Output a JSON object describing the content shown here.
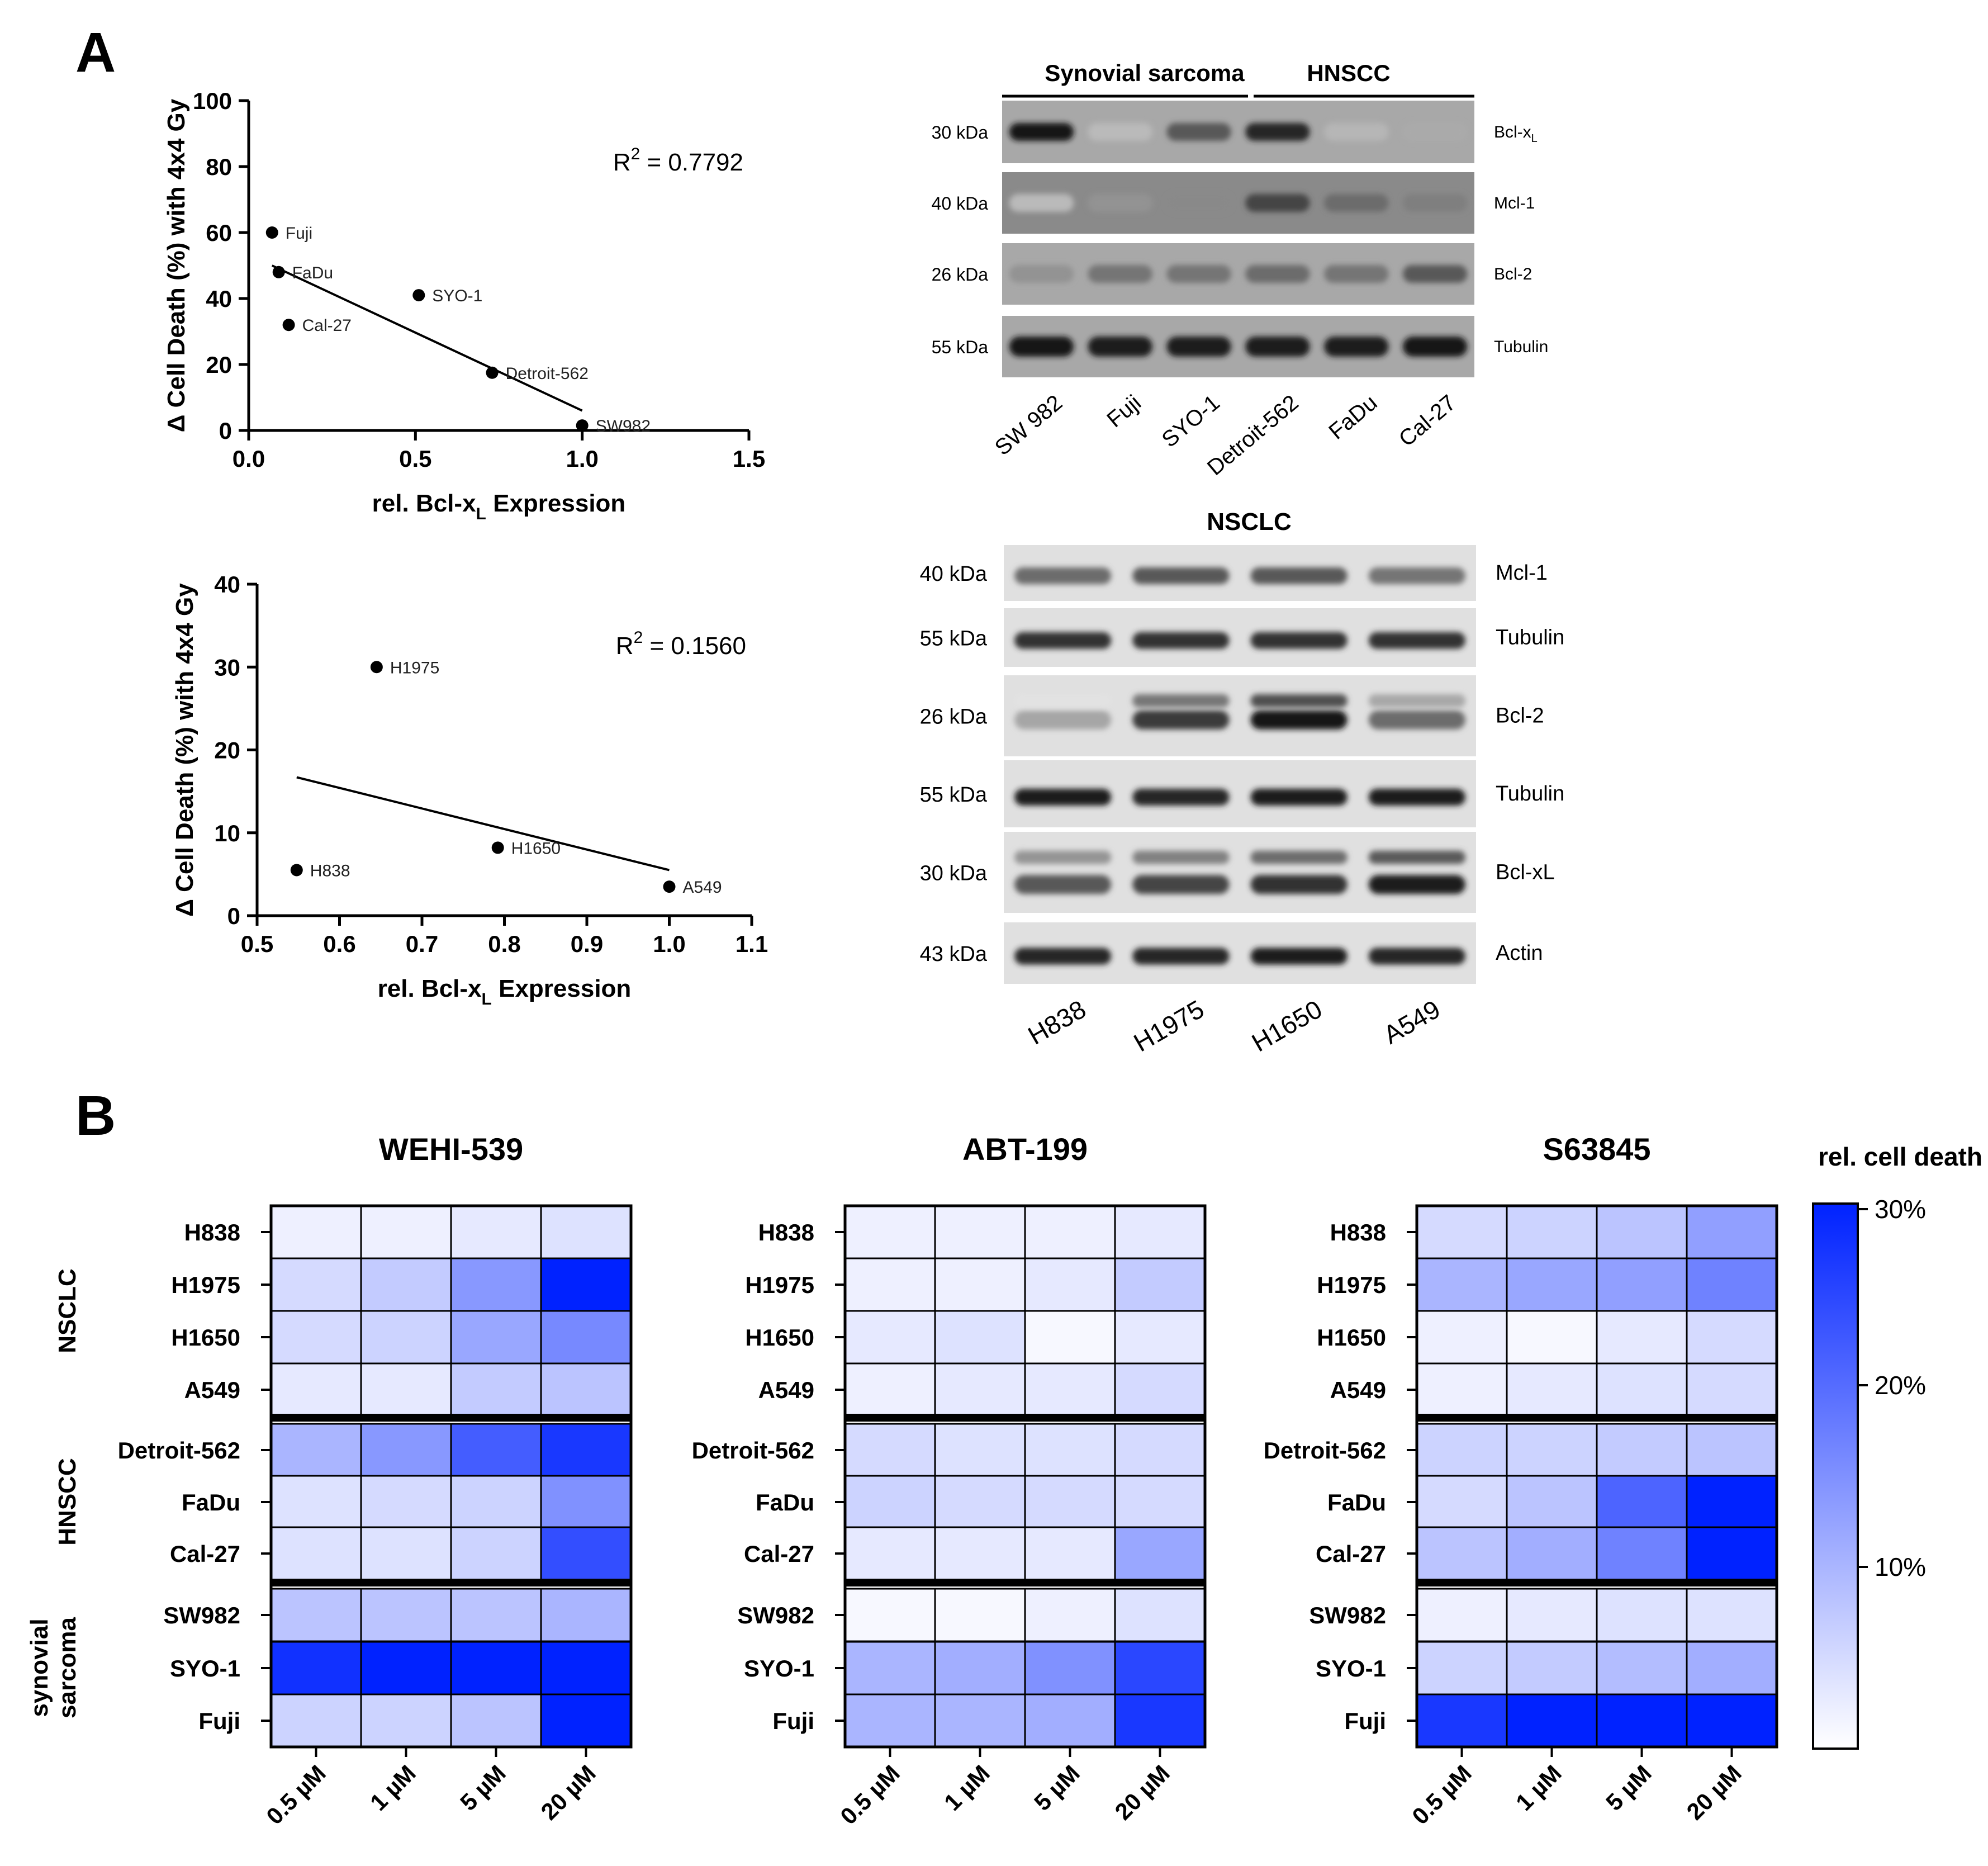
{
  "panel_a_label": "A",
  "panel_b_label": "B",
  "scatter_charts": [
    {
      "type": "scatter",
      "ylabel": "Δ Cell Death (%) with 4x4 Gy",
      "xlabel_main": "rel. Bcl-x",
      "xlabel_sub": "L",
      "xlabel_tail": " Expression",
      "r2_prefix": "R",
      "r2_sup": "2",
      "r2_value": " = 0.7792",
      "xlim": [
        0,
        1.5
      ],
      "ylim": [
        0,
        100
      ],
      "xticks": [
        "0.0",
        "0.5",
        "1.0",
        "1.5"
      ],
      "xtick_values": [
        0,
        0.5,
        1.0,
        1.5
      ],
      "yticks": [
        "0",
        "20",
        "40",
        "60",
        "80",
        "100"
      ],
      "ytick_values": [
        0,
        20,
        40,
        60,
        80,
        100
      ],
      "points": [
        {
          "label": "Fuji",
          "x": 0.07,
          "y": 60
        },
        {
          "label": "FaDu",
          "x": 0.09,
          "y": 48
        },
        {
          "label": "Cal-27",
          "x": 0.12,
          "y": 32
        },
        {
          "label": "SYO-1",
          "x": 0.51,
          "y": 41
        },
        {
          "label": "Detroit-562",
          "x": 0.73,
          "y": 17.5
        },
        {
          "label": "SW982",
          "x": 1.0,
          "y": 1.5
        }
      ],
      "fit_line": {
        "x": [
          0.07,
          1.0
        ],
        "y": [
          50,
          6
        ]
      }
    },
    {
      "type": "scatter",
      "ylabel": "Δ Cell Death (%) with 4x4 Gy",
      "xlabel_main": "rel. Bcl-x",
      "xlabel_sub": "L",
      "xlabel_tail": " Expression",
      "r2_prefix": "R",
      "r2_sup": "2",
      "r2_value": " = 0.1560",
      "xlim": [
        0.5,
        1.1
      ],
      "ylim": [
        0,
        40
      ],
      "xticks": [
        "0.5",
        "0.6",
        "0.7",
        "0.8",
        "0.9",
        "1.0",
        "1.1"
      ],
      "xtick_values": [
        0.5,
        0.6,
        0.7,
        0.8,
        0.9,
        1.0,
        1.1
      ],
      "yticks": [
        "0",
        "10",
        "20",
        "30",
        "40"
      ],
      "ytick_values": [
        0,
        10,
        20,
        30,
        40
      ],
      "points": [
        {
          "label": "H1975",
          "x": 0.645,
          "y": 30
        },
        {
          "label": "H838",
          "x": 0.548,
          "y": 5.5
        },
        {
          "label": "H1650",
          "x": 0.792,
          "y": 8.2
        },
        {
          "label": "A549",
          "x": 1.0,
          "y": 3.5
        }
      ],
      "fit_line": {
        "x": [
          0.548,
          1.0
        ],
        "y": [
          16.7,
          5.5
        ]
      }
    }
  ],
  "blot1": {
    "group_labels": [
      "Synovial sarcoma",
      "HNSCC"
    ],
    "rows": [
      {
        "kda": "30 kDa",
        "protein_main": "Bcl-x",
        "protein_sub": "L",
        "intensities": [
          0.95,
          0.1,
          0.6,
          0.85,
          0.12,
          0.18
        ]
      },
      {
        "kda": "40 kDa",
        "protein_main": "Mcl-1",
        "protein_sub": "",
        "intensities": [
          0.1,
          0.3,
          0.35,
          0.7,
          0.5,
          0.4
        ]
      },
      {
        "kda": "26 kDa",
        "protein_main": "Bcl-2",
        "protein_sub": "",
        "intensities": [
          0.3,
          0.45,
          0.45,
          0.5,
          0.45,
          0.6
        ]
      },
      {
        "kda": "55 kDa",
        "protein_main": "Tubulin",
        "protein_sub": "",
        "intensities": [
          0.95,
          0.9,
          0.9,
          0.9,
          0.9,
          0.95
        ]
      }
    ],
    "lanes": [
      "SW 982",
      "Fuji",
      "SYO-1",
      "Detroit-562",
      "FaDu",
      "Cal-27"
    ]
  },
  "blot2": {
    "title": "NSCLC",
    "rows": [
      {
        "kda": "40 kDa",
        "protein": "Mcl-1",
        "intensities": [
          0.5,
          0.6,
          0.6,
          0.45
        ]
      },
      {
        "kda": "55 kDa",
        "protein": "Tubulin",
        "intensities": [
          0.8,
          0.8,
          0.8,
          0.8
        ]
      },
      {
        "kda": "26 kDa",
        "protein": "Bcl-2",
        "intensities": [
          0.2,
          0.75,
          0.95,
          0.5
        ]
      },
      {
        "kda": "55 kDa",
        "protein": "Tubulin",
        "intensities": [
          0.9,
          0.85,
          0.9,
          0.9
        ]
      },
      {
        "kda": "30 kDa",
        "protein": "Bcl-xL",
        "intensities": [
          0.6,
          0.7,
          0.8,
          0.9
        ]
      },
      {
        "kda": "43 kDa",
        "protein": "Actin",
        "intensities": [
          0.85,
          0.85,
          0.9,
          0.85
        ]
      }
    ],
    "lanes": [
      "H838",
      "H1975",
      "H1650",
      "A549"
    ]
  },
  "heatmaps": {
    "type": "heatmap",
    "columns": [
      "0.5 µM",
      "1 µM",
      "5 µM",
      "20 µM"
    ],
    "rows": [
      "H838",
      "H1975",
      "H1650",
      "A549",
      "Detroit-562",
      "FaDu",
      "Cal-27",
      "SW982",
      "SYO-1",
      "Fuji"
    ],
    "groups": [
      {
        "name": "NSCLC",
        "rows": [
          0,
          3
        ]
      },
      {
        "name": "HNSCC",
        "rows": [
          4,
          6
        ]
      },
      {
        "name": "synovial sarcoma",
        "name_lines": [
          "synovial",
          "sarcoma"
        ],
        "rows": [
          7,
          9
        ]
      }
    ],
    "panels": [
      {
        "title": "WEHI-539",
        "values": [
          [
            2,
            2,
            3,
            4
          ],
          [
            5,
            7,
            14,
            30
          ],
          [
            5,
            6,
            12,
            16
          ],
          [
            3,
            3,
            7,
            8
          ],
          [
            10,
            14,
            22,
            27
          ],
          [
            4,
            5,
            6,
            15
          ],
          [
            4,
            4,
            6,
            24
          ],
          [
            8,
            8,
            8,
            10
          ],
          [
            28,
            30,
            30,
            30
          ],
          [
            6,
            6,
            8,
            30
          ]
        ]
      },
      {
        "title": "ABT-199",
        "values": [
          [
            2,
            2,
            2,
            3
          ],
          [
            2,
            2,
            3,
            7
          ],
          [
            3,
            4,
            1,
            3
          ],
          [
            2,
            3,
            3,
            5
          ],
          [
            5,
            4,
            4,
            5
          ],
          [
            6,
            5,
            5,
            5
          ],
          [
            3,
            3,
            3,
            12
          ],
          [
            1,
            1,
            2,
            4
          ],
          [
            10,
            11,
            15,
            25
          ],
          [
            10,
            10,
            11,
            27
          ]
        ]
      },
      {
        "title": "S63845",
        "values": [
          [
            5,
            6,
            8,
            13
          ],
          [
            10,
            12,
            13,
            17
          ],
          [
            2,
            1,
            3,
            5
          ],
          [
            2,
            3,
            4,
            5
          ],
          [
            6,
            6,
            7,
            8
          ],
          [
            5,
            8,
            21,
            30
          ],
          [
            8,
            11,
            17,
            30
          ],
          [
            2,
            3,
            4,
            4
          ],
          [
            6,
            7,
            9,
            11
          ],
          [
            27,
            30,
            30,
            30
          ]
        ]
      }
    ],
    "colorbar": {
      "title": "rel. cell death",
      "min": 0,
      "max": 30,
      "ticks": [
        "30%",
        "20%",
        "10%"
      ],
      "tick_values": [
        30,
        20,
        10
      ],
      "color_low": "#ffffff",
      "color_high": "#0022ff"
    }
  }
}
